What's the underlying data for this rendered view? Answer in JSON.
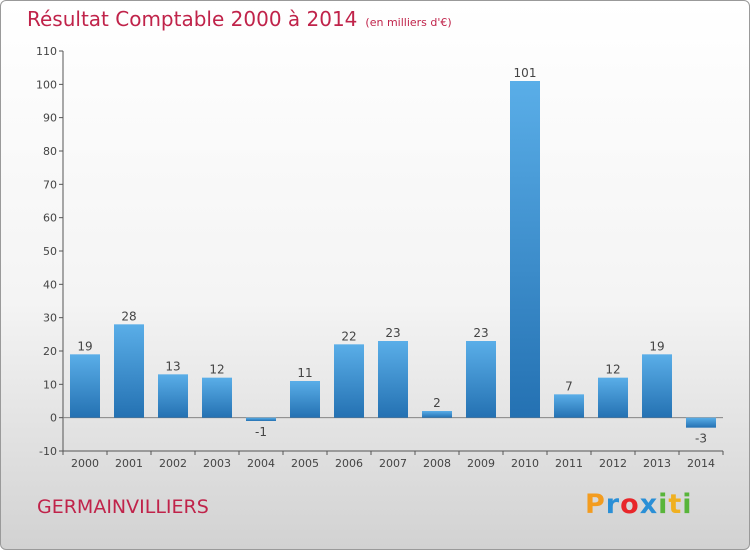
{
  "header": {
    "title": "Résultat Comptable 2000 à 2014",
    "subtitle": "(en milliers d'€)"
  },
  "footer": {
    "town": "GERMAINVILLIERS",
    "brand": "Proxiti"
  },
  "colors": {
    "bar_light": "#5aaee8",
    "bar_dark": "#2471b2",
    "title": "#c0234a",
    "brand_letters": [
      "#f39c1f",
      "#2a8fd6",
      "#e8262a",
      "#2a8fd6",
      "#58b53a",
      "#f0b020",
      "#58b53a"
    ]
  },
  "chart_data": {
    "type": "bar",
    "categories": [
      "2000",
      "2001",
      "2002",
      "2003",
      "2004",
      "2005",
      "2006",
      "2007",
      "2008",
      "2009",
      "2010",
      "2011",
      "2012",
      "2013",
      "2014"
    ],
    "values": [
      19,
      28,
      13,
      12,
      -1,
      11,
      22,
      23,
      2,
      23,
      101,
      7,
      12,
      19,
      -3
    ],
    "labels": [
      "19",
      "28",
      "13",
      "12",
      "-1",
      "11",
      "22",
      "23",
      "2",
      "23",
      "101",
      "7",
      "12",
      "19",
      "-3"
    ],
    "title": "Résultat Comptable 2000 à 2014",
    "subtitle": "(en milliers d'€)",
    "xlabel": "",
    "ylabel": "",
    "ylim": [
      -10,
      110
    ],
    "yticks": [
      -10,
      0,
      10,
      20,
      30,
      40,
      50,
      60,
      70,
      80,
      90,
      100,
      110
    ],
    "grid": false,
    "legend": "none"
  }
}
